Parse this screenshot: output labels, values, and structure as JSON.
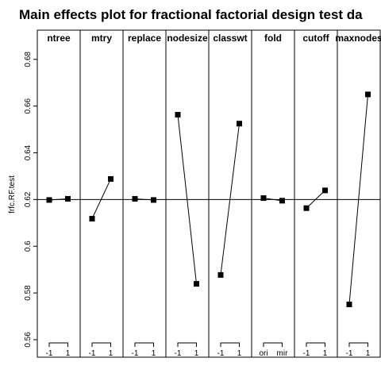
{
  "chart_data": {
    "type": "line",
    "title": "Main effects plot for fractional factorial design test da",
    "ylabel": "frfc.RF.test",
    "ylim": [
      0.5525,
      0.6925
    ],
    "yticks": [
      0.56,
      0.58,
      0.6,
      0.62,
      0.64,
      0.66,
      0.68
    ],
    "ytick_labels": [
      "0.56",
      "0.58",
      "0.6",
      "0.62",
      "0.64",
      "0.66",
      "0.68"
    ],
    "reference_line": 0.62,
    "grid": false,
    "factors": [
      {
        "name": "ntree",
        "levels": [
          "-1",
          "1"
        ],
        "values": [
          0.6198,
          0.6203
        ]
      },
      {
        "name": "mtry",
        "levels": [
          "-1",
          "1"
        ],
        "values": [
          0.6118,
          0.6288
        ]
      },
      {
        "name": "replace",
        "levels": [
          "-1",
          "1"
        ],
        "values": [
          0.6203,
          0.6198
        ]
      },
      {
        "name": "nodesize",
        "levels": [
          "-1",
          "1"
        ],
        "values": [
          0.6563,
          0.5839
        ]
      },
      {
        "name": "classwt",
        "levels": [
          "-1",
          "1"
        ],
        "values": [
          0.5877,
          0.6525
        ]
      },
      {
        "name": "fold",
        "levels": [
          "ori",
          "mir"
        ],
        "values": [
          0.6206,
          0.6195
        ]
      },
      {
        "name": "cutoff",
        "levels": [
          "-1",
          "1"
        ],
        "values": [
          0.6163,
          0.6239
        ]
      },
      {
        "name": "maxnodes",
        "levels": [
          "-1",
          "1"
        ],
        "values": [
          0.5751,
          0.665
        ]
      }
    ]
  }
}
